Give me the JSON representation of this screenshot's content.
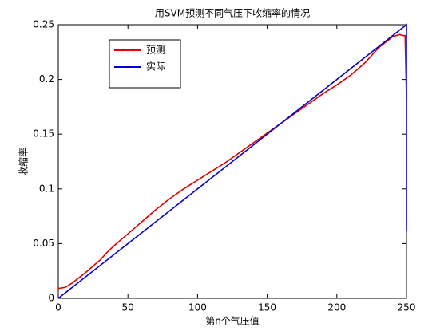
{
  "chart_data": {
    "type": "line",
    "title": "用SVM预测不同气压下收缩率的情况",
    "xlabel": "第n个气压值",
    "ylabel": "收缩率",
    "xlim": [
      0,
      250
    ],
    "xticks": [
      0,
      50,
      100,
      150,
      200,
      250
    ],
    "ylim": [
      0,
      0.25
    ],
    "yticks": [
      0,
      0.05,
      0.1,
      0.15,
      0.2,
      0.25
    ],
    "grid": false,
    "legend_loc": "upper left",
    "series": [
      {
        "name": "预测",
        "color": "#dd0000",
        "x": [
          0,
          5,
          10,
          20,
          30,
          35,
          40,
          50,
          60,
          70,
          80,
          90,
          100,
          110,
          120,
          130,
          140,
          150,
          160,
          170,
          180,
          190,
          200,
          210,
          220,
          230,
          240,
          245,
          248,
          249,
          250
        ],
        "values": [
          0.009,
          0.01,
          0.014,
          0.024,
          0.035,
          0.042,
          0.048,
          0.059,
          0.07,
          0.081,
          0.091,
          0.1,
          0.108,
          0.116,
          0.124,
          0.133,
          0.142,
          0.151,
          0.16,
          0.169,
          0.178,
          0.187,
          0.195,
          0.204,
          0.215,
          0.229,
          0.239,
          0.241,
          0.24,
          0.24,
          0.182
        ]
      },
      {
        "name": "实际",
        "color": "#0000cc",
        "x": [
          0,
          100,
          200,
          249,
          250,
          250
        ],
        "values": [
          0,
          0.1,
          0.2,
          0.249,
          0.25,
          0.062
        ]
      }
    ]
  }
}
